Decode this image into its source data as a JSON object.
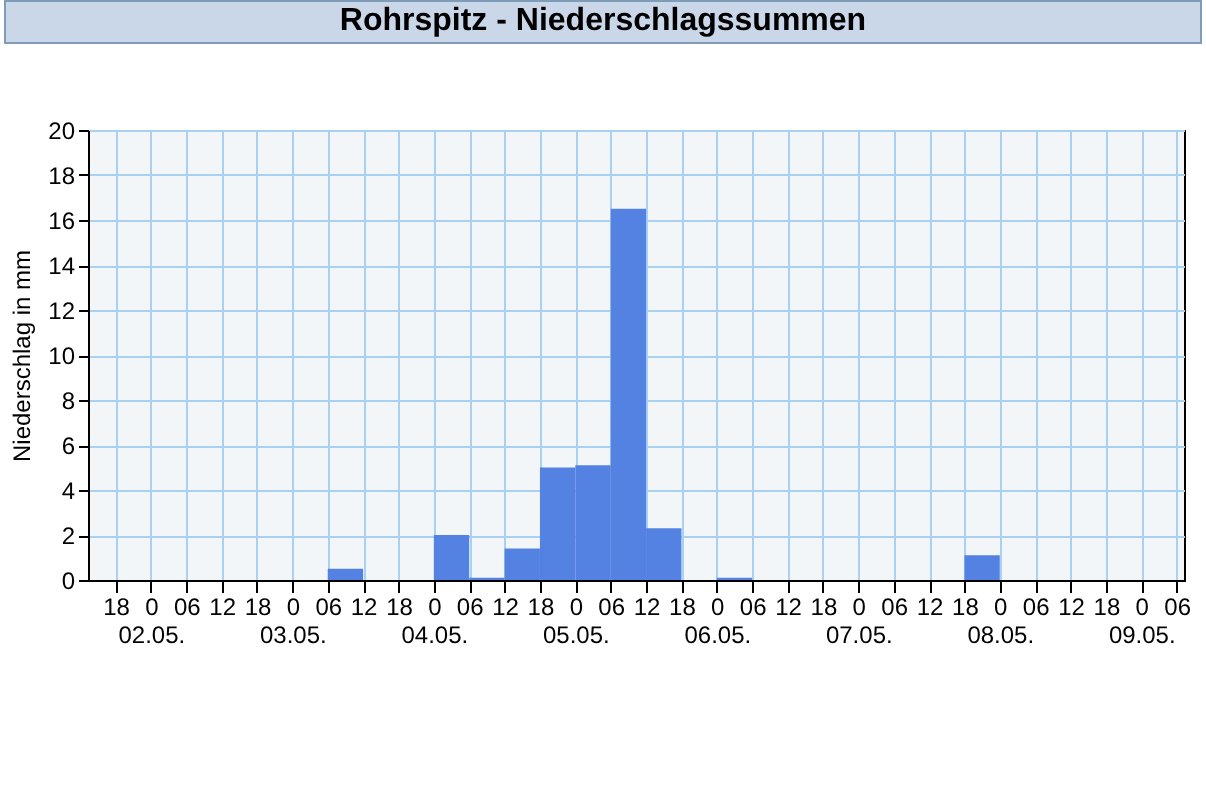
{
  "chart_data": {
    "type": "histogram",
    "title": "Rohrspitz - Niederschlagssummen",
    "ylabel": "Niederschlag in mm",
    "bins": [
      "--05-01T18:00",
      "--05-02T00:00",
      "--05-02T06:00",
      "--05-02T12:00",
      "--05-02T18:00",
      "--05-03T00:00",
      "--05-03T06:00",
      "--05-03T12:00",
      "--05-03T18:00",
      "--05-04T00:00",
      "--05-04T06:00",
      "--05-04T12:00",
      "--05-04T18:00",
      "--05-05T00:00",
      "--05-05T06:00",
      "--05-05T12:00",
      "--05-05T18:00",
      "--05-06T00:00",
      "--05-06T06:00",
      "--05-06T12:00",
      "--05-06T18:00",
      "--05-07T00:00",
      "--05-07T06:00",
      "--05-07T12:00",
      "--05-07T18:00",
      "--05-08T00:00",
      "--05-08T06:00",
      "--05-08T12:00",
      "--05-08T18:00",
      "--05-09T00:00",
      "--05-09T06:00"
    ],
    "values": [
      0,
      0,
      0,
      0,
      0,
      0,
      0.5,
      0,
      0,
      2.0,
      0.1,
      1.4,
      5.0,
      5.1,
      16.5,
      2.3,
      0,
      0.1,
      0,
      0,
      0,
      0,
      0,
      0,
      1.1,
      0,
      0,
      0,
      0,
      0
    ],
    "color": "#5482e2",
    "xlim": [
      "--05-01T13:20",
      "--05-09T07:15"
    ],
    "xticks": [
      {
        "value": "--05-01T18:00",
        "label": "18"
      },
      {
        "value": "--05-02T00:00",
        "label": "0\n02.05."
      },
      {
        "value": "--05-02T06:00",
        "label": "06"
      },
      {
        "value": "--05-02T12:00",
        "label": "12"
      },
      {
        "value": "--05-02T18:00",
        "label": "18"
      },
      {
        "value": "--05-03T00:00",
        "label": "0\n03.05."
      },
      {
        "value": "--05-03T06:00",
        "label": "06"
      },
      {
        "value": "--05-03T12:00",
        "label": "12"
      },
      {
        "value": "--05-03T18:00",
        "label": "18"
      },
      {
        "value": "--05-04T00:00",
        "label": "0\n04.05."
      },
      {
        "value": "--05-04T06:00",
        "label": "06"
      },
      {
        "value": "--05-04T12:00",
        "label": "12"
      },
      {
        "value": "--05-04T18:00",
        "label": "18"
      },
      {
        "value": "--05-05T00:00",
        "label": "0\n05.05."
      },
      {
        "value": "--05-05T06:00",
        "label": "06"
      },
      {
        "value": "--05-05T12:00",
        "label": "12"
      },
      {
        "value": "--05-05T18:00",
        "label": "18"
      },
      {
        "value": "--05-06T00:00",
        "label": "0\n06.05."
      },
      {
        "value": "--05-06T06:00",
        "label": "06"
      },
      {
        "value": "--05-06T12:00",
        "label": "12"
      },
      {
        "value": "--05-06T18:00",
        "label": "18"
      },
      {
        "value": "--05-07T00:00",
        "label": "0\n07.05."
      },
      {
        "value": "--05-07T06:00",
        "label": "06"
      },
      {
        "value": "--05-07T12:00",
        "label": "12"
      },
      {
        "value": "--05-07T18:00",
        "label": "18"
      },
      {
        "value": "--05-08T00:00",
        "label": "0\n08.05."
      },
      {
        "value": "--05-08T06:00",
        "label": "06"
      },
      {
        "value": "--05-08T12:00",
        "label": "12"
      },
      {
        "value": "--05-08T18:00",
        "label": "18"
      },
      {
        "value": "--05-09T00:00",
        "label": "0\n09.05."
      },
      {
        "value": "--05-09T06:00",
        "label": "06"
      }
    ],
    "ylim": [
      0,
      20
    ],
    "yticks": [
      0,
      2,
      4,
      6,
      8,
      10,
      12,
      14,
      16,
      18,
      20
    ],
    "grid": true
  }
}
